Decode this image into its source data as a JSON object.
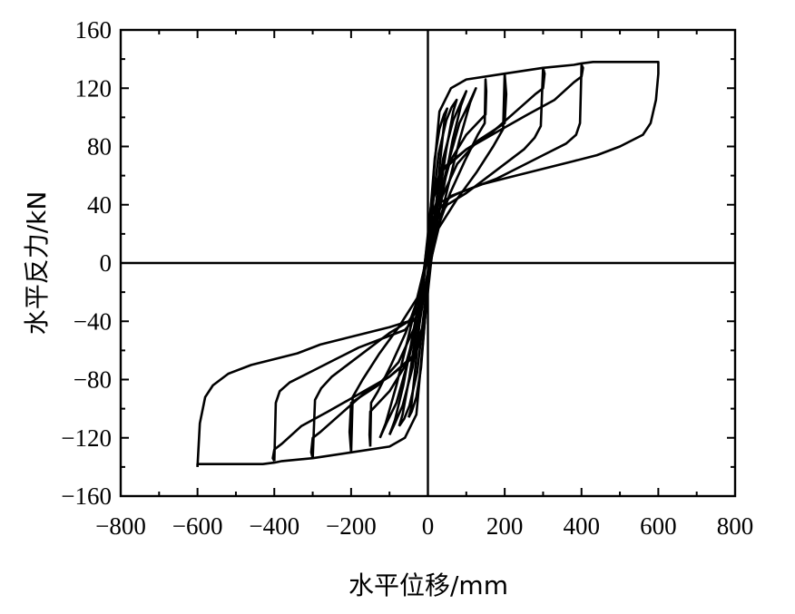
{
  "chart_data": {
    "type": "line",
    "title": "",
    "xlabel": "水平位移/mm",
    "ylabel": "水平反力/kN",
    "xlim": [
      -800,
      800
    ],
    "ylim": [
      -160,
      160
    ],
    "x_ticks": [
      "−800",
      "−600",
      "−400",
      "−200",
      "0",
      "200",
      "400",
      "600",
      "800"
    ],
    "x_tick_values": [
      -800,
      -600,
      -400,
      -200,
      0,
      200,
      400,
      600,
      800
    ],
    "y_ticks": [
      "160",
      "120",
      "80",
      "40",
      "0",
      "−40",
      "−80",
      "−120",
      "−160"
    ],
    "y_tick_values": [
      160,
      120,
      80,
      40,
      0,
      -40,
      -80,
      -120,
      -160
    ],
    "grid": false,
    "legend": "none",
    "line_color": "#000000",
    "series": [
      {
        "amplitude": 50,
        "points": [
          [
            -50,
            -106
          ],
          [
            -44,
            -100
          ],
          [
            -32,
            -70
          ],
          [
            -18,
            -30
          ],
          [
            -6,
            0
          ],
          [
            8,
            40
          ],
          [
            18,
            72
          ],
          [
            30,
            92
          ],
          [
            42,
            102
          ],
          [
            50,
            106
          ],
          [
            44,
            100
          ],
          [
            32,
            70
          ],
          [
            18,
            30
          ],
          [
            6,
            0
          ],
          [
            -8,
            -40
          ],
          [
            -18,
            -72
          ],
          [
            -30,
            -92
          ],
          [
            -42,
            -102
          ],
          [
            -50,
            -106
          ]
        ]
      },
      {
        "amplitude": 75,
        "points": [
          [
            -75,
            -112
          ],
          [
            -66,
            -104
          ],
          [
            -48,
            -78
          ],
          [
            -28,
            -42
          ],
          [
            -8,
            -6
          ],
          [
            12,
            38
          ],
          [
            28,
            75
          ],
          [
            48,
            98
          ],
          [
            62,
            107
          ],
          [
            75,
            112
          ],
          [
            66,
            104
          ],
          [
            48,
            78
          ],
          [
            28,
            42
          ],
          [
            8,
            6
          ],
          [
            -12,
            -38
          ],
          [
            -28,
            -75
          ],
          [
            -48,
            -98
          ],
          [
            -62,
            -107
          ],
          [
            -75,
            -112
          ]
        ]
      },
      {
        "amplitude": 100,
        "points": [
          [
            -100,
            -118
          ],
          [
            -86,
            -108
          ],
          [
            -64,
            -84
          ],
          [
            -40,
            -50
          ],
          [
            -14,
            -12
          ],
          [
            16,
            32
          ],
          [
            40,
            72
          ],
          [
            66,
            98
          ],
          [
            86,
            110
          ],
          [
            100,
            118
          ],
          [
            86,
            108
          ],
          [
            64,
            84
          ],
          [
            40,
            50
          ],
          [
            14,
            12
          ],
          [
            -16,
            -32
          ],
          [
            -40,
            -72
          ],
          [
            -66,
            -98
          ],
          [
            -86,
            -110
          ],
          [
            -100,
            -118
          ]
        ]
      },
      {
        "amplitude": 125,
        "points": [
          [
            -125,
            -120
          ],
          [
            -110,
            -110
          ],
          [
            -82,
            -84
          ],
          [
            -52,
            -52
          ],
          [
            -18,
            -14
          ],
          [
            18,
            30
          ],
          [
            50,
            66
          ],
          [
            82,
            96
          ],
          [
            108,
            110
          ],
          [
            125,
            120
          ],
          [
            110,
            110
          ],
          [
            82,
            84
          ],
          [
            52,
            52
          ],
          [
            18,
            14
          ],
          [
            -18,
            -30
          ],
          [
            -50,
            -66
          ],
          [
            -82,
            -96
          ],
          [
            -108,
            -110
          ],
          [
            -125,
            -120
          ]
        ]
      },
      {
        "amplitude": 150,
        "points": [
          [
            -150,
            -126
          ],
          [
            -148,
            -96
          ],
          [
            -130,
            -88
          ],
          [
            -96,
            -70
          ],
          [
            -58,
            -48
          ],
          [
            -20,
            -20
          ],
          [
            -4,
            0
          ],
          [
            20,
            34
          ],
          [
            58,
            70
          ],
          [
            100,
            88
          ],
          [
            150,
            102
          ],
          [
            152,
            118
          ],
          [
            150,
            126
          ],
          [
            148,
            96
          ],
          [
            130,
            88
          ],
          [
            96,
            70
          ],
          [
            58,
            48
          ],
          [
            20,
            20
          ],
          [
            4,
            0
          ],
          [
            -20,
            -34
          ],
          [
            -58,
            -70
          ],
          [
            -100,
            -88
          ],
          [
            -150,
            -102
          ],
          [
            -152,
            -118
          ],
          [
            -150,
            -126
          ]
        ]
      },
      {
        "amplitude": 200,
        "points": [
          [
            -200,
            -130
          ],
          [
            -196,
            -92
          ],
          [
            -170,
            -80
          ],
          [
            -126,
            -62
          ],
          [
            -76,
            -44
          ],
          [
            -28,
            -24
          ],
          [
            -6,
            0
          ],
          [
            24,
            38
          ],
          [
            76,
            68
          ],
          [
            130,
            84
          ],
          [
            200,
            96
          ],
          [
            204,
            116
          ],
          [
            200,
            130
          ],
          [
            196,
            92
          ],
          [
            170,
            80
          ],
          [
            126,
            62
          ],
          [
            76,
            44
          ],
          [
            28,
            24
          ],
          [
            6,
            0
          ],
          [
            -24,
            -38
          ],
          [
            -76,
            -68
          ],
          [
            -130,
            -84
          ],
          [
            -200,
            -96
          ],
          [
            -204,
            -116
          ],
          [
            -200,
            -130
          ]
        ]
      },
      {
        "amplitude": 300,
        "points": [
          [
            -300,
            -134
          ],
          [
            -294,
            -94
          ],
          [
            -278,
            -86
          ],
          [
            -250,
            -78
          ],
          [
            -200,
            -68
          ],
          [
            -150,
            -58
          ],
          [
            -100,
            -48
          ],
          [
            -50,
            -40
          ],
          [
            -20,
            -28
          ],
          [
            -6,
            0
          ],
          [
            14,
            44
          ],
          [
            40,
            64
          ],
          [
            100,
            78
          ],
          [
            160,
            88
          ],
          [
            220,
            102
          ],
          [
            280,
            116
          ],
          [
            300,
            120
          ],
          [
            304,
            130
          ],
          [
            300,
            134
          ],
          [
            294,
            94
          ],
          [
            278,
            86
          ],
          [
            250,
            78
          ],
          [
            200,
            68
          ],
          [
            150,
            58
          ],
          [
            100,
            48
          ],
          [
            50,
            40
          ],
          [
            20,
            28
          ],
          [
            6,
            0
          ],
          [
            -14,
            -44
          ],
          [
            -40,
            -64
          ],
          [
            -100,
            -78
          ],
          [
            -160,
            -88
          ],
          [
            -220,
            -102
          ],
          [
            -280,
            -116
          ],
          [
            -300,
            -120
          ],
          [
            -304,
            -130
          ],
          [
            -300,
            -134
          ]
        ]
      },
      {
        "amplitude": 400,
        "points": [
          [
            -400,
            -136
          ],
          [
            -396,
            -96
          ],
          [
            -386,
            -88
          ],
          [
            -360,
            -82
          ],
          [
            -300,
            -74
          ],
          [
            -240,
            -66
          ],
          [
            -180,
            -58
          ],
          [
            -120,
            -52
          ],
          [
            -60,
            -46
          ],
          [
            -26,
            -36
          ],
          [
            -8,
            0
          ],
          [
            10,
            44
          ],
          [
            34,
            64
          ],
          [
            100,
            78
          ],
          [
            180,
            90
          ],
          [
            260,
            102
          ],
          [
            330,
            112
          ],
          [
            380,
            124
          ],
          [
            400,
            128
          ],
          [
            404,
            134
          ],
          [
            400,
            136
          ],
          [
            396,
            96
          ],
          [
            386,
            88
          ],
          [
            360,
            82
          ],
          [
            300,
            74
          ],
          [
            240,
            66
          ],
          [
            180,
            58
          ],
          [
            120,
            52
          ],
          [
            60,
            46
          ],
          [
            26,
            36
          ],
          [
            8,
            0
          ],
          [
            -10,
            -44
          ],
          [
            -34,
            -64
          ],
          [
            -100,
            -78
          ],
          [
            -180,
            -90
          ],
          [
            -260,
            -102
          ],
          [
            -330,
            -112
          ],
          [
            -380,
            -124
          ],
          [
            -400,
            -128
          ],
          [
            -404,
            -134
          ],
          [
            -400,
            -136
          ]
        ]
      },
      {
        "amplitude": 600,
        "points": [
          [
            -600,
            -140
          ],
          [
            -594,
            -110
          ],
          [
            -580,
            -92
          ],
          [
            -560,
            -84
          ],
          [
            -520,
            -76
          ],
          [
            -460,
            -70
          ],
          [
            -400,
            -66
          ],
          [
            -340,
            -62
          ],
          [
            -280,
            -56
          ],
          [
            -220,
            -52
          ],
          [
            -160,
            -48
          ],
          [
            -100,
            -44
          ],
          [
            -50,
            -40
          ],
          [
            -20,
            -30
          ],
          [
            -8,
            0
          ],
          [
            6,
            30
          ],
          [
            20,
            40
          ],
          [
            80,
            48
          ],
          [
            140,
            54
          ],
          [
            200,
            58
          ],
          [
            260,
            62
          ],
          [
            320,
            66
          ],
          [
            380,
            70
          ],
          [
            440,
            74
          ],
          [
            500,
            80
          ],
          [
            560,
            88
          ],
          [
            580,
            96
          ],
          [
            594,
            112
          ],
          [
            600,
            130
          ],
          [
            600,
            138
          ],
          [
            540,
            138
          ],
          [
            460,
            138
          ],
          [
            430,
            138
          ],
          [
            400,
            137
          ],
          [
            380,
            136
          ],
          [
            300,
            134
          ],
          [
            200,
            130
          ],
          [
            100,
            126
          ],
          [
            60,
            120
          ],
          [
            30,
            104
          ],
          [
            15,
            60
          ],
          [
            8,
            20
          ],
          [
            4,
            0
          ],
          [
            -4,
            -20
          ],
          [
            -8,
            -40
          ],
          [
            -15,
            -60
          ],
          [
            -30,
            -104
          ],
          [
            -60,
            -120
          ],
          [
            -100,
            -126
          ],
          [
            -200,
            -130
          ],
          [
            -300,
            -134
          ],
          [
            -380,
            -136
          ],
          [
            -400,
            -137
          ],
          [
            -430,
            -138
          ],
          [
            -460,
            -138
          ],
          [
            -540,
            -138
          ],
          [
            -600,
            -138
          ],
          [
            -600,
            -140
          ]
        ]
      }
    ]
  }
}
